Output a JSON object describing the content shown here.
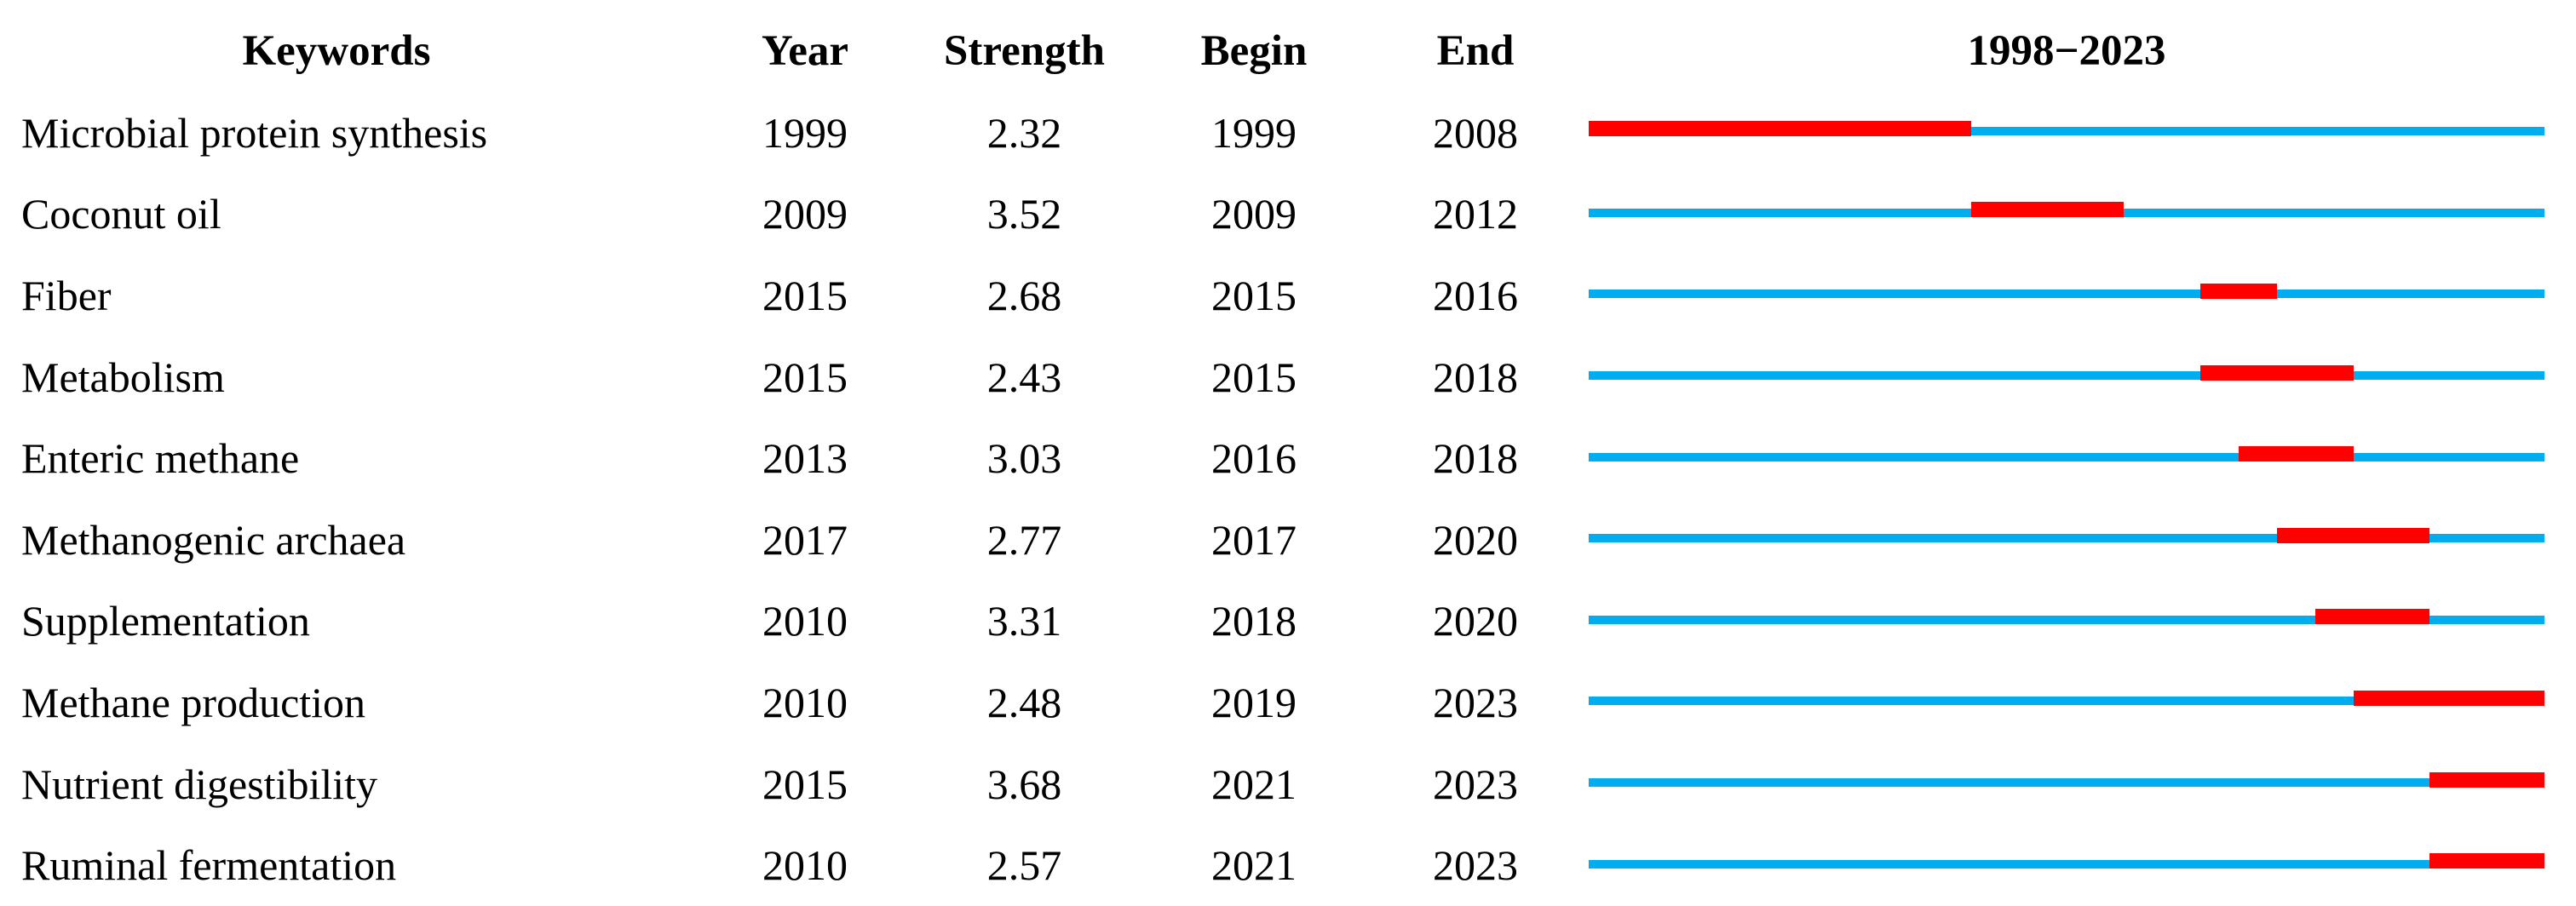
{
  "header": {
    "keywords": "Keywords",
    "year": "Year",
    "strength": "Strength",
    "begin": "Begin",
    "end": "End",
    "timeline": "1998−2023"
  },
  "colors": {
    "burst_red": "#FF0000",
    "timeline_blue": "#00AEEF",
    "text": "#000000",
    "background": "#FFFFFF"
  },
  "chart_data": {
    "type": "table",
    "columns": [
      "Keywords",
      "Year",
      "Strength",
      "Begin",
      "End",
      "1998−2023"
    ],
    "timeline": {
      "start_year": 1998,
      "end_year": 2023,
      "label": "1998−2023",
      "baseline_color": "#00AEEF",
      "burst_color": "#FF0000",
      "burst_encoding": "red segment spans burst period from Begin to End on the 1998-2023 axis; blue line spans full axis"
    },
    "rows": [
      {
        "keyword": "Microbial protein synthesis",
        "year": 1999,
        "strength": 2.32,
        "begin": 1999,
        "end": 2008
      },
      {
        "keyword": "Coconut oil",
        "year": 2009,
        "strength": 3.52,
        "begin": 2009,
        "end": 2012
      },
      {
        "keyword": "Fiber",
        "year": 2015,
        "strength": 2.68,
        "begin": 2015,
        "end": 2016
      },
      {
        "keyword": "Metabolism",
        "year": 2015,
        "strength": 2.43,
        "begin": 2015,
        "end": 2018
      },
      {
        "keyword": "Enteric methane",
        "year": 2013,
        "strength": 3.03,
        "begin": 2016,
        "end": 2018
      },
      {
        "keyword": "Methanogenic archaea",
        "year": 2017,
        "strength": 2.77,
        "begin": 2017,
        "end": 2020
      },
      {
        "keyword": "Supplementation",
        "year": 2010,
        "strength": 3.31,
        "begin": 2018,
        "end": 2020
      },
      {
        "keyword": "Methane production",
        "year": 2010,
        "strength": 2.48,
        "begin": 2019,
        "end": 2023
      },
      {
        "keyword": "Nutrient digestibility",
        "year": 2015,
        "strength": 3.68,
        "begin": 2021,
        "end": 2023
      },
      {
        "keyword": "Ruminal fermentation",
        "year": 2010,
        "strength": 2.57,
        "begin": 2021,
        "end": 2023
      }
    ]
  }
}
